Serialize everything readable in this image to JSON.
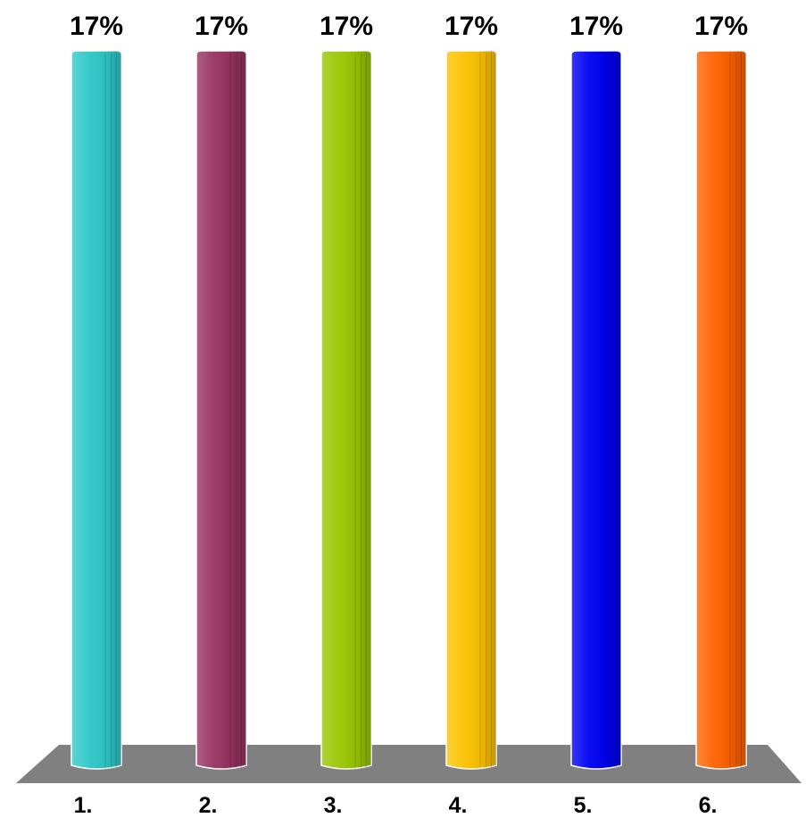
{
  "chart_data": {
    "type": "bar",
    "categories": [
      "1.",
      "2.",
      "3.",
      "4.",
      "5.",
      "6."
    ],
    "values": [
      17,
      17,
      17,
      17,
      17,
      17
    ],
    "value_labels": [
      "17%",
      "17%",
      "17%",
      "17%",
      "17%",
      "17%"
    ],
    "ylim": [
      0,
      17
    ],
    "grid": false,
    "legend": "none",
    "three_d": true,
    "bar_shape": "cylinder",
    "colors": [
      "#2ec8c8",
      "#96325f",
      "#99c600",
      "#fcc200",
      "#0000f2",
      "#fd6200"
    ],
    "floor_color": "#808080"
  }
}
